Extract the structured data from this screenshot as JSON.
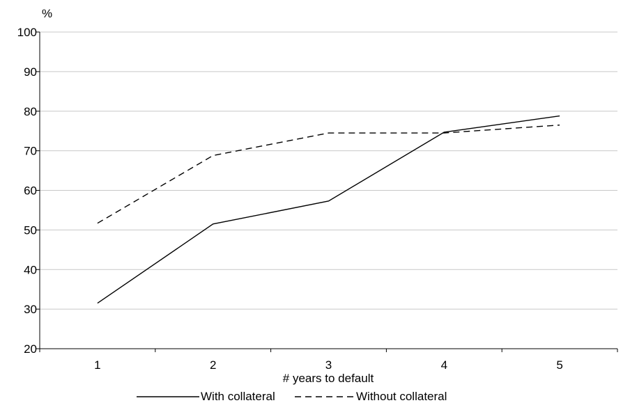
{
  "chart_data": {
    "type": "line",
    "title": "",
    "ylabel": "%",
    "xlabel": "# years to default",
    "categories": [
      "1",
      "2",
      "3",
      "4",
      "5"
    ],
    "ylim": [
      20,
      100
    ],
    "yticks": [
      "20",
      "30",
      "40",
      "50",
      "60",
      "70",
      "80",
      "90",
      "100"
    ],
    "grid": "horizontal",
    "legend_position": "bottom",
    "series": [
      {
        "name": "With collateral",
        "values": [
          31.5,
          51.5,
          57.3,
          74.7,
          78.8
        ],
        "style": "solid",
        "color": "#000000"
      },
      {
        "name": "Without collateral",
        "values": [
          51.7,
          68.8,
          74.5,
          74.5,
          76.5
        ],
        "style": "dashed",
        "color": "#000000"
      }
    ]
  }
}
